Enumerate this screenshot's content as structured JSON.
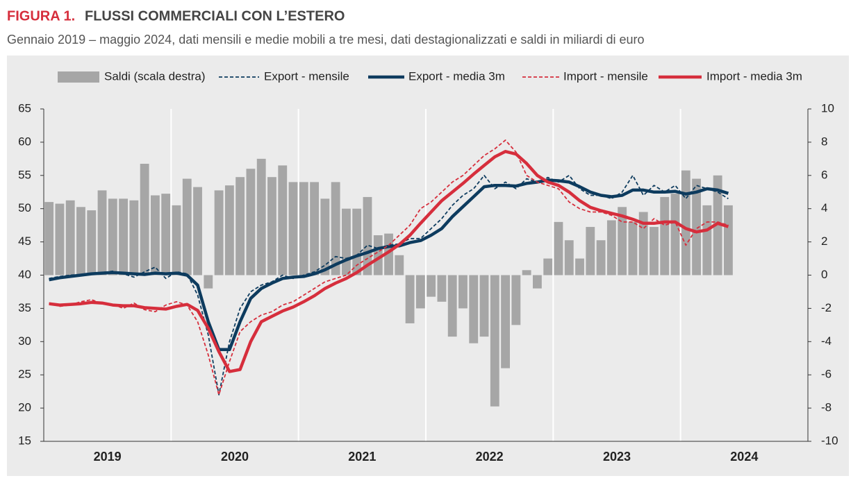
{
  "chart_data": {
    "type": "bar_line",
    "title_prefix": "FIGURA 1.",
    "title": "FLUSSI COMMERCIALI CON L’ESTERO",
    "subtitle": "Gennaio 2019 – maggio 2024, dati mensili e medie mobili a tre mesi, dati destagionalizzati e saldi in miliardi di euro",
    "years": [
      "2019",
      "2020",
      "2021",
      "2022",
      "2023",
      "2024"
    ],
    "ylim": [
      15,
      65
    ],
    "yticks": [
      15,
      20,
      25,
      30,
      35,
      40,
      45,
      50,
      55,
      60,
      65
    ],
    "y2lim": [
      -10,
      10
    ],
    "y2ticks": [
      -10,
      -8,
      -6,
      -4,
      -2,
      0,
      2,
      4,
      6,
      8,
      10
    ],
    "series": [
      {
        "name": "Saldi (scala destra)",
        "color": "#a6a6a6",
        "style": "bar",
        "axis": "y2",
        "values": [
          4.4,
          4.3,
          4.5,
          4.1,
          3.9,
          5.1,
          4.6,
          4.6,
          4.5,
          6.7,
          4.8,
          4.9,
          4.2,
          5.8,
          5.3,
          -0.8,
          5.1,
          5.4,
          5.9,
          6.4,
          7.0,
          5.9,
          6.6,
          5.6,
          5.6,
          5.6,
          4.6,
          5.6,
          4.0,
          4.0,
          4.7,
          2.4,
          2.5,
          1.2,
          -2.9,
          -2.0,
          -1.3,
          -1.6,
          -3.7,
          -2.0,
          -4.1,
          -3.7,
          -7.9,
          -5.6,
          -3.0,
          0.3,
          -0.8,
          1.0,
          3.2,
          2.1,
          1.0,
          2.9,
          2.1,
          3.3,
          4.1,
          3.2,
          3.8,
          2.9,
          4.7,
          4.9,
          6.3,
          5.8,
          4.2,
          6.0,
          4.2
        ]
      },
      {
        "name": "Export - mensile",
        "color": "#0d3b5e",
        "style": "dashed",
        "values": [
          39.5,
          39.8,
          40,
          40.1,
          40.3,
          40.4,
          40.6,
          40.2,
          39.7,
          40.5,
          41.2,
          39.5,
          40.5,
          40.2,
          37,
          31,
          22,
          30,
          35,
          37.5,
          38.5,
          39,
          40,
          39.5,
          40,
          40.5,
          41.5,
          42.8,
          42.5,
          43,
          44.5,
          44,
          44.5,
          44.7,
          45.5,
          45.5,
          47,
          48.5,
          50.5,
          52,
          53,
          55,
          53,
          54,
          53,
          54.5,
          54,
          54.7,
          54,
          55,
          53,
          52,
          52,
          51.5,
          52.5,
          55,
          52,
          53.5,
          52.5,
          53.5,
          51.5,
          53.5,
          53,
          52.5,
          51.5
        ]
      },
      {
        "name": "Export - media 3m",
        "color": "#0d3b5e",
        "style": "solid",
        "values": [
          39.3,
          39.6,
          39.8,
          40,
          40.2,
          40.3,
          40.4,
          40.3,
          40.2,
          40.1,
          40.3,
          40.2,
          40.3,
          40,
          38.5,
          33,
          28.8,
          28.8,
          33,
          36.5,
          38,
          38.8,
          39.5,
          39.7,
          39.8,
          40.2,
          40.8,
          41.6,
          42.3,
          42.9,
          43.4,
          44,
          44.3,
          44.4,
          44.9,
          45.2,
          46,
          47,
          48.8,
          50.3,
          51.8,
          53.3,
          53.5,
          53.5,
          53.4,
          53.8,
          54,
          54.3,
          54.2,
          54,
          53.3,
          52.5,
          52,
          51.8,
          52,
          52.8,
          52.8,
          52.5,
          52.5,
          52.6,
          52.2,
          52.5,
          53,
          52.8,
          52.3
        ]
      },
      {
        "name": "Import - mensile",
        "color": "#d62e3c",
        "style": "dashed",
        "values": [
          35.8,
          35.3,
          35.5,
          36,
          36.3,
          35.7,
          35.6,
          35,
          35.8,
          34.8,
          34.5,
          35.5,
          36,
          35.5,
          33,
          28,
          22,
          27,
          31.5,
          33,
          34,
          34.5,
          35.5,
          36,
          37,
          38,
          39,
          39.5,
          40,
          41.5,
          42.5,
          43.5,
          44.5,
          46,
          47.5,
          50,
          51,
          52.5,
          54,
          55,
          56.5,
          58,
          59,
          60.3,
          58.5,
          55,
          54,
          53.5,
          53,
          51,
          50,
          49.5,
          49.5,
          49,
          48,
          48,
          47,
          48.5,
          47.5,
          48,
          44.5,
          47,
          48,
          48,
          47.5
        ]
      },
      {
        "name": "Import - media 3m",
        "color": "#d62e3c",
        "style": "solid",
        "values": [
          35.7,
          35.5,
          35.6,
          35.7,
          35.9,
          35.8,
          35.5,
          35.4,
          35.4,
          35.1,
          35,
          34.9,
          35.3,
          35.6,
          34.7,
          32,
          28.5,
          25.5,
          25.8,
          30,
          33,
          33.8,
          34.6,
          35.2,
          36,
          36.9,
          38,
          38.8,
          39.5,
          40.4,
          41.5,
          42.5,
          43.5,
          44.6,
          46,
          47.8,
          49.5,
          51.2,
          52.5,
          53.8,
          55.2,
          56.5,
          57.8,
          58.6,
          58.2,
          56.8,
          55,
          54,
          53.5,
          52.5,
          51.2,
          50.2,
          49.7,
          49.3,
          48.9,
          48.4,
          47.8,
          47.8,
          48,
          48,
          47,
          46.5,
          46.8,
          47.8,
          47.3
        ]
      }
    ]
  }
}
